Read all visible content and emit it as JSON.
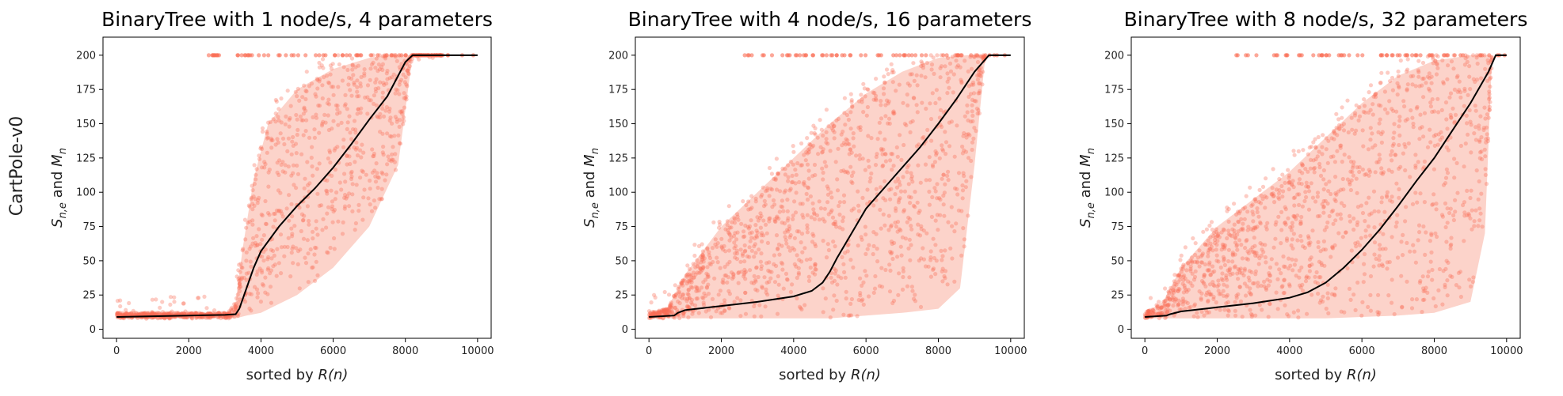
{
  "row_label": "CartPole-v0",
  "colors": {
    "scatter": "#fa6e55",
    "band": "#fbc4b8",
    "median": "#000000"
  },
  "chart_data": [
    {
      "type": "scatter",
      "title": "BinaryTree with 1 node/s, 4 parameters",
      "xlabel_prefix": "sorted by ",
      "xlabel_italic": "R(n)",
      "ylabel": "S_{n,e} and M_n",
      "xlim": [
        0,
        10000
      ],
      "ylim": [
        0,
        200
      ],
      "xticks": [
        0,
        2000,
        4000,
        6000,
        8000,
        10000
      ],
      "yticks": [
        0,
        25,
        50,
        75,
        100,
        125,
        150,
        175,
        200
      ],
      "series": [
        {
          "role": "median",
          "x": [
            0,
            1000,
            2000,
            3000,
            3300,
            3400,
            3600,
            3800,
            4000,
            4500,
            5000,
            5500,
            6000,
            6500,
            7000,
            7500,
            8000,
            8200,
            10000
          ],
          "y": [
            9,
            9.5,
            10,
            10.5,
            11,
            15,
            30,
            45,
            57,
            75,
            90,
            103,
            118,
            135,
            153,
            170,
            195,
            200,
            200
          ]
        }
      ],
      "band_upper": {
        "x": [
          0,
          3100,
          3300,
          3500,
          3800,
          4200,
          5000,
          6000,
          7000,
          7600,
          8200,
          10000
        ],
        "y": [
          12,
          12,
          20,
          60,
          110,
          150,
          175,
          190,
          198,
          200,
          200,
          200
        ]
      },
      "band_lower": {
        "x": [
          0,
          3300,
          3600,
          4000,
          5000,
          6000,
          7000,
          7800,
          8200,
          10000
        ],
        "y": [
          8,
          8,
          10,
          12,
          25,
          45,
          75,
          120,
          200,
          200
        ]
      }
    },
    {
      "type": "scatter",
      "title": "BinaryTree with 4 node/s, 16 parameters",
      "xlabel_prefix": "sorted by ",
      "xlabel_italic": "R(n)",
      "ylabel": "S_{n,e} and M_n",
      "xlim": [
        0,
        10000
      ],
      "ylim": [
        0,
        200
      ],
      "xticks": [
        0,
        2000,
        4000,
        6000,
        8000,
        10000
      ],
      "yticks": [
        0,
        25,
        50,
        75,
        100,
        125,
        150,
        175,
        200
      ],
      "series": [
        {
          "role": "median",
          "x": [
            0,
            700,
            800,
            1000,
            2000,
            3000,
            4000,
            4500,
            4800,
            5000,
            5200,
            5600,
            6000,
            6500,
            7000,
            7500,
            8000,
            8500,
            9000,
            9400,
            10000
          ],
          "y": [
            9,
            10,
            12,
            14,
            17,
            20,
            24,
            28,
            34,
            42,
            52,
            70,
            88,
            103,
            118,
            133,
            150,
            168,
            188,
            200,
            200
          ]
        }
      ],
      "band_upper": {
        "x": [
          0,
          500,
          1000,
          2000,
          3000,
          4000,
          5000,
          6000,
          7000,
          8000,
          8800,
          10000
        ],
        "y": [
          12,
          15,
          40,
          75,
          100,
          125,
          150,
          172,
          188,
          198,
          200,
          200
        ]
      },
      "band_lower": {
        "x": [
          0,
          1000,
          3000,
          5000,
          6000,
          7000,
          8000,
          8600,
          9000,
          9300,
          10000
        ],
        "y": [
          8,
          8,
          8,
          8,
          10,
          12,
          15,
          30,
          120,
          200,
          200
        ]
      }
    },
    {
      "type": "scatter",
      "title": "BinaryTree with 8 node/s, 32 parameters",
      "xlabel_prefix": "sorted by ",
      "xlabel_italic": "R(n)",
      "ylabel": "S_{n,e} and M_n",
      "xlim": [
        0,
        10000
      ],
      "ylim": [
        0,
        200
      ],
      "xticks": [
        0,
        2000,
        4000,
        6000,
        8000,
        10000
      ],
      "yticks": [
        0,
        25,
        50,
        75,
        100,
        125,
        150,
        175,
        200
      ],
      "series": [
        {
          "role": "median",
          "x": [
            0,
            600,
            700,
            1000,
            2000,
            3000,
            4000,
            4500,
            5000,
            5500,
            6000,
            6500,
            7000,
            7500,
            8000,
            8500,
            9000,
            9500,
            9700,
            10000
          ],
          "y": [
            9,
            10,
            11,
            13,
            16,
            19,
            23,
            27,
            34,
            45,
            58,
            73,
            90,
            108,
            125,
            145,
            165,
            188,
            200,
            200
          ]
        }
      ],
      "band_upper": {
        "x": [
          0,
          500,
          1000,
          2000,
          3000,
          4000,
          5000,
          6000,
          7000,
          8000,
          9000,
          9500,
          10000
        ],
        "y": [
          12,
          20,
          45,
          75,
          95,
          115,
          140,
          165,
          185,
          196,
          200,
          200,
          200
        ]
      },
      "band_lower": {
        "x": [
          0,
          2000,
          5000,
          6000,
          7000,
          8000,
          9000,
          9400,
          9600,
          10000
        ],
        "y": [
          8,
          8,
          8,
          9,
          10,
          12,
          20,
          70,
          200,
          200
        ]
      }
    }
  ]
}
